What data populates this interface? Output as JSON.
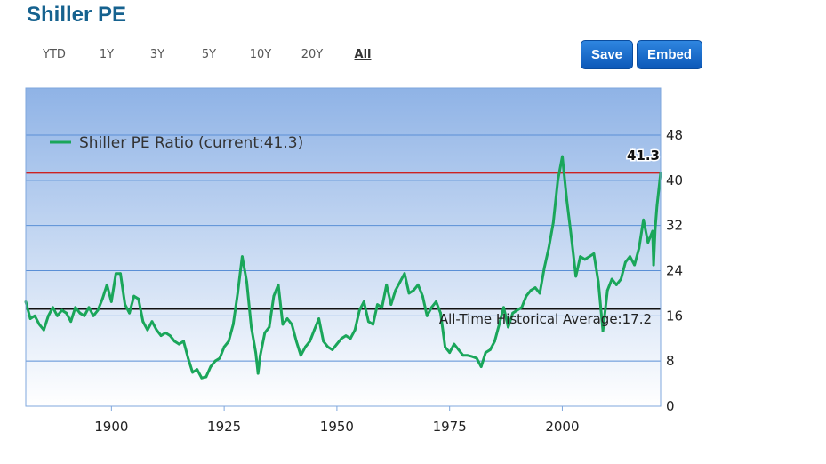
{
  "page": {
    "title": "Shiller PE"
  },
  "range_buttons": [
    {
      "label": "YTD",
      "active": false
    },
    {
      "label": "1Y",
      "active": false
    },
    {
      "label": "3Y",
      "active": false
    },
    {
      "label": "5Y",
      "active": false
    },
    {
      "label": "10Y",
      "active": false
    },
    {
      "label": "20Y",
      "active": false
    },
    {
      "label": "All",
      "active": true
    }
  ],
  "actions": {
    "save_label": "Save",
    "embed_label": "Embed"
  },
  "chart_data": {
    "type": "line",
    "title": "",
    "xlabel": "",
    "ylabel": "",
    "xlim": [
      1881,
      2021.8
    ],
    "ylim": [
      0,
      48
    ],
    "x_ticks": [
      1900,
      1925,
      1950,
      1975,
      2000
    ],
    "y_ticks": [
      0,
      8,
      16,
      24,
      32,
      40,
      48
    ],
    "grid": "horizontal",
    "legend": {
      "position": "top-left",
      "entries": [
        "Shiller PE Ratio (current:41.3)"
      ]
    },
    "current_label": "41.3",
    "reference_lines": [
      {
        "value": 41.3,
        "color": "#cc2222"
      },
      {
        "value": 17.2,
        "label": "All-Time Historical Average:17.2",
        "color": "#111111"
      }
    ],
    "colors": {
      "series": "#1aa65a",
      "grid": "#5a8fd6",
      "plot_top": "#8fb3e6",
      "plot_bottom": "#ffffff"
    },
    "series": [
      {
        "name": "Shiller PE Ratio (current:41.3)",
        "points": [
          [
            1881,
            18.5
          ],
          [
            1882,
            15.5
          ],
          [
            1883,
            16.0
          ],
          [
            1884,
            14.5
          ],
          [
            1885,
            13.5
          ],
          [
            1886,
            16.0
          ],
          [
            1887,
            17.5
          ],
          [
            1888,
            16.0
          ],
          [
            1889,
            17.0
          ],
          [
            1890,
            16.5
          ],
          [
            1891,
            15.0
          ],
          [
            1892,
            17.5
          ],
          [
            1893,
            16.5
          ],
          [
            1894,
            16.0
          ],
          [
            1895,
            17.5
          ],
          [
            1896,
            16.0
          ],
          [
            1897,
            17.0
          ],
          [
            1898,
            19.0
          ],
          [
            1899,
            21.5
          ],
          [
            1900,
            18.5
          ],
          [
            1901,
            23.5
          ],
          [
            1902,
            23.5
          ],
          [
            1903,
            18.0
          ],
          [
            1904,
            16.5
          ],
          [
            1905,
            19.5
          ],
          [
            1906,
            19.0
          ],
          [
            1907,
            15.0
          ],
          [
            1908,
            13.5
          ],
          [
            1909,
            15.0
          ],
          [
            1910,
            13.5
          ],
          [
            1911,
            12.5
          ],
          [
            1912,
            13.0
          ],
          [
            1913,
            12.5
          ],
          [
            1914,
            11.5
          ],
          [
            1915,
            11.0
          ],
          [
            1916,
            11.5
          ],
          [
            1917,
            8.5
          ],
          [
            1918,
            6.0
          ],
          [
            1919,
            6.5
          ],
          [
            1920,
            5.0
          ],
          [
            1921,
            5.2
          ],
          [
            1922,
            7.0
          ],
          [
            1923,
            8.0
          ],
          [
            1924,
            8.5
          ],
          [
            1925,
            10.5
          ],
          [
            1926,
            11.5
          ],
          [
            1927,
            14.5
          ],
          [
            1928,
            20.0
          ],
          [
            1929,
            26.5
          ],
          [
            1930,
            22.0
          ],
          [
            1931,
            14.0
          ],
          [
            1932,
            9.5
          ],
          [
            1932.5,
            5.8
          ],
          [
            1933,
            9.0
          ],
          [
            1934,
            13.0
          ],
          [
            1935,
            14.0
          ],
          [
            1936,
            19.5
          ],
          [
            1937,
            21.5
          ],
          [
            1938,
            14.5
          ],
          [
            1939,
            15.5
          ],
          [
            1940,
            14.5
          ],
          [
            1941,
            11.5
          ],
          [
            1942,
            9.0
          ],
          [
            1943,
            10.5
          ],
          [
            1944,
            11.5
          ],
          [
            1945,
            13.5
          ],
          [
            1946,
            15.5
          ],
          [
            1947,
            11.5
          ],
          [
            1948,
            10.5
          ],
          [
            1949,
            10.0
          ],
          [
            1950,
            11.0
          ],
          [
            1951,
            12.0
          ],
          [
            1952,
            12.5
          ],
          [
            1953,
            12.0
          ],
          [
            1954,
            13.5
          ],
          [
            1955,
            17.0
          ],
          [
            1956,
            18.5
          ],
          [
            1957,
            15.0
          ],
          [
            1958,
            14.5
          ],
          [
            1959,
            18.0
          ],
          [
            1960,
            17.5
          ],
          [
            1961,
            21.5
          ],
          [
            1962,
            18.0
          ],
          [
            1963,
            20.5
          ],
          [
            1964,
            22.0
          ],
          [
            1965,
            23.5
          ],
          [
            1966,
            20.0
          ],
          [
            1967,
            20.5
          ],
          [
            1968,
            21.5
          ],
          [
            1969,
            19.5
          ],
          [
            1970,
            16.0
          ],
          [
            1971,
            17.5
          ],
          [
            1972,
            18.5
          ],
          [
            1973,
            16.5
          ],
          [
            1974,
            10.5
          ],
          [
            1975,
            9.5
          ],
          [
            1976,
            11.0
          ],
          [
            1977,
            10.0
          ],
          [
            1978,
            9.0
          ],
          [
            1979,
            9.0
          ],
          [
            1980,
            8.8
          ],
          [
            1981,
            8.5
          ],
          [
            1982,
            7.0
          ],
          [
            1983,
            9.5
          ],
          [
            1984,
            10.0
          ],
          [
            1985,
            11.5
          ],
          [
            1986,
            14.5
          ],
          [
            1987,
            17.5
          ],
          [
            1988,
            14.0
          ],
          [
            1989,
            16.5
          ],
          [
            1990,
            17.0
          ],
          [
            1991,
            17.5
          ],
          [
            1992,
            19.5
          ],
          [
            1993,
            20.5
          ],
          [
            1994,
            21.0
          ],
          [
            1995,
            20.0
          ],
          [
            1996,
            24.5
          ],
          [
            1997,
            28.0
          ],
          [
            1998,
            32.5
          ],
          [
            1999,
            40.0
          ],
          [
            2000,
            44.2
          ],
          [
            2001,
            36.5
          ],
          [
            2002,
            30.0
          ],
          [
            2003,
            23.0
          ],
          [
            2004,
            26.5
          ],
          [
            2005,
            26.0
          ],
          [
            2006,
            26.5
          ],
          [
            2007,
            27.0
          ],
          [
            2008,
            22.0
          ],
          [
            2009,
            13.3
          ],
          [
            2010,
            20.5
          ],
          [
            2011,
            22.5
          ],
          [
            2012,
            21.5
          ],
          [
            2013,
            22.5
          ],
          [
            2014,
            25.5
          ],
          [
            2015,
            26.5
          ],
          [
            2016,
            25.0
          ],
          [
            2017,
            28.0
          ],
          [
            2018,
            33.0
          ],
          [
            2019,
            29.0
          ],
          [
            2020,
            31.0
          ],
          [
            2020.25,
            25.0
          ],
          [
            2020.6,
            31.5
          ],
          [
            2021,
            35.5
          ],
          [
            2021.8,
            41.3
          ]
        ]
      }
    ]
  }
}
